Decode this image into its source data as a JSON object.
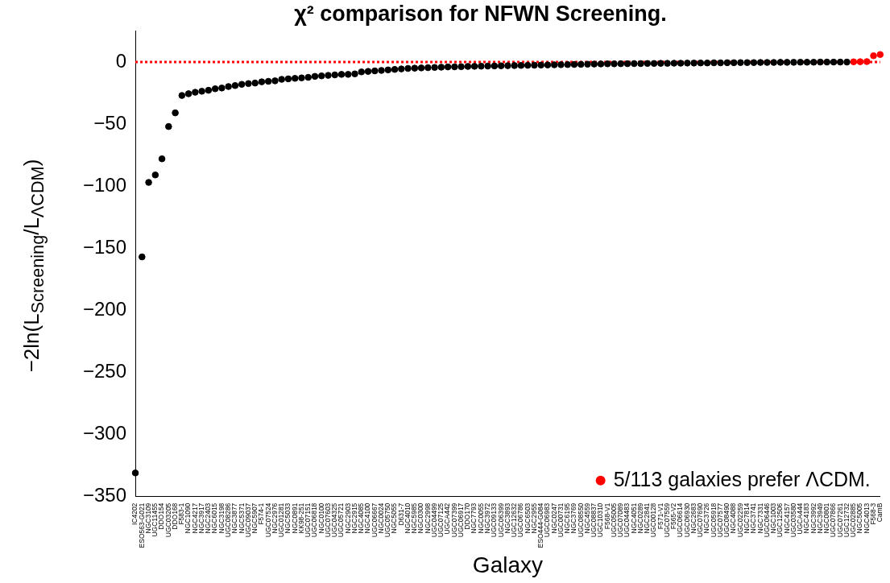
{
  "chart_data": {
    "type": "scatter",
    "title": "χ² comparison for NFWN Screening.",
    "xlabel": "Galaxy",
    "ylabel": "−2ln(L$_{Screening}$/L$_{ΛCDM}$)",
    "categories": [
      "IC4202",
      "ESO563-G021",
      "NGC3109",
      "UGC11455",
      "DDO154",
      "UGC03205",
      "DDO168",
      "F583-1",
      "NGC1090",
      "NGC4217",
      "NGC3917",
      "NGC2403",
      "NGC6015",
      "NGC3198",
      "UGC08286",
      "NGC3877",
      "NGC5371",
      "UGC09037",
      "NGC5907",
      "F574-1",
      "UGC07524",
      "NGC2976",
      "UGC01281",
      "NGC5033",
      "NGC0891",
      "KK98-251",
      "UGC07151",
      "UGC06818",
      "NGC0100",
      "UGC07603",
      "UGC04325",
      "UGC05721",
      "NGC2903",
      "NGC2915",
      "NGC4085",
      "NGC4100",
      "UGC06667",
      "NGC0024",
      "UGC05750",
      "NGC5055",
      "D631-7",
      "NGC4010",
      "NGC5985",
      "NGC0300",
      "NGC2998",
      "UGC04499",
      "UGC07125",
      "UGCA442",
      "UGC07399",
      "UGC06917",
      "DDO170",
      "NGC7793",
      "NGC0055",
      "NGC3972",
      "UGC09133",
      "UGC06399",
      "NGC3893",
      "UGC12632",
      "UGC06786",
      "NGC6503",
      "NGC2955",
      "ESO444-G084",
      "UGC06983",
      "NGC0247",
      "UGC00731",
      "NGC6195",
      "NGC3769",
      "UGC08550",
      "NGC4559",
      "UGC08837",
      "UGC10310",
      "F568-V1",
      "UGC05005",
      "UGC07089",
      "UGC04483",
      "NGC4051",
      "NGC0289",
      "NGC2841",
      "UGC00128",
      "F571-V1",
      "UGC07559",
      "F565-V2",
      "UGC06614",
      "UGC06930",
      "NGC2683",
      "UGC07690",
      "NGC3726",
      "UGC05918",
      "UGC07577",
      "UGC08490",
      "NGC4088",
      "UGC02259",
      "NGC7814",
      "NGC3741",
      "NGC7331",
      "UGC06446",
      "NGC1003",
      "UGC12506",
      "NGC4157",
      "UGC03580",
      "UGCA444",
      "NGC4183",
      "NGC3992",
      "NGC3949",
      "NGC0801",
      "UGC07866",
      "UGC07261",
      "UGC12732",
      "UGC02885",
      "NGC5005",
      "NGC4013",
      "F568-3",
      "CamB"
    ],
    "series": [
      {
        "color": "#000000",
        "values": [
          -331,
          -157,
          -97,
          -91,
          -78,
          -52,
          -41,
          -27,
          -25.6,
          -24.4,
          -23.6,
          -22.8,
          -21.6,
          -21,
          -19.8,
          -19,
          -18,
          -17.4,
          -17,
          -16,
          -15.6,
          -15.2,
          -14,
          -13.6,
          -13.2,
          -12.8,
          -12.4,
          -11.6,
          -11.2,
          -10.8,
          -10.4,
          -10,
          -10,
          -9.6,
          -8,
          -7.6,
          -7.2,
          -6.8,
          -6.4,
          -6,
          -5.6,
          -5.2,
          -5,
          -4.8,
          -4.6,
          -4.4,
          -4.2,
          -4,
          -3.9,
          -3.8,
          -3.6,
          -3.5,
          -3.4,
          -3.3,
          -3.2,
          -3.1,
          -3,
          -2.9,
          -2.8,
          -2.7,
          -2.6,
          -2.5,
          -2.4,
          -2.3,
          -2.2,
          -2.1,
          -2,
          -1.9,
          -1.8,
          -1.7,
          -1.6,
          -1.5,
          -1.5,
          -1.4,
          -1.4,
          -1.3,
          -1.3,
          -1.2,
          -1.2,
          -1.1,
          -1.1,
          -1,
          -1,
          -0.9,
          -0.9,
          -0.8,
          -0.8,
          -0.7,
          -0.7,
          -0.6,
          -0.6,
          -0.5,
          -0.5,
          -0.5,
          -0.4,
          -0.4,
          -0.4,
          -0.3,
          -0.3,
          -0.3,
          -0.2,
          -0.2,
          -0.2,
          -0.1,
          -0.1,
          -0.1,
          -0.1,
          -0.1,
          null,
          null,
          null,
          null,
          null
        ]
      },
      {
        "name": "5/113 galaxies prefer ΛCDM.",
        "color": "#ff0000",
        "values": [
          null,
          null,
          null,
          null,
          null,
          null,
          null,
          null,
          null,
          null,
          null,
          null,
          null,
          null,
          null,
          null,
          null,
          null,
          null,
          null,
          null,
          null,
          null,
          null,
          null,
          null,
          null,
          null,
          null,
          null,
          null,
          null,
          null,
          null,
          null,
          null,
          null,
          null,
          null,
          null,
          null,
          null,
          null,
          null,
          null,
          null,
          null,
          null,
          null,
          null,
          null,
          null,
          null,
          null,
          null,
          null,
          null,
          null,
          null,
          null,
          null,
          null,
          null,
          null,
          null,
          null,
          null,
          null,
          null,
          null,
          null,
          null,
          null,
          null,
          null,
          null,
          null,
          null,
          null,
          null,
          null,
          null,
          null,
          null,
          null,
          null,
          null,
          null,
          null,
          null,
          null,
          null,
          null,
          null,
          null,
          null,
          null,
          null,
          null,
          null,
          null,
          null,
          null,
          null,
          null,
          null,
          null,
          null,
          0.1,
          0.2,
          0.3,
          5,
          6
        ]
      }
    ],
    "ylim": [
      -350,
      25
    ],
    "yticks": [
      0,
      -50,
      -100,
      -150,
      -200,
      -250,
      -300,
      -350
    ],
    "ref_lines": [
      {
        "axis": "y",
        "value": 0,
        "color": "#ff0000",
        "line_style": "dotted"
      }
    ],
    "grid": false,
    "legend": "bottom right",
    "marker": "circle"
  }
}
